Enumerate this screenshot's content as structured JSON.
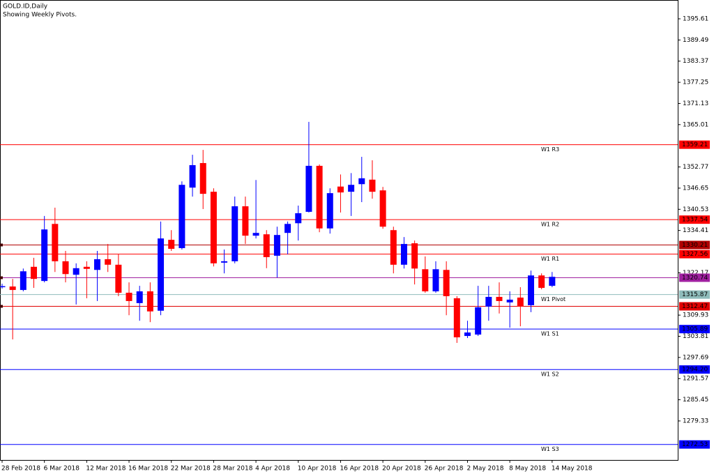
{
  "chart_data": {
    "type": "candlestick",
    "title": "GOLD.ID,Daily",
    "subtitle": "Showing Weekly Pivots.",
    "categories": [
      "28 Feb 2018",
      null,
      null,
      null,
      "6 Mar 2018",
      null,
      null,
      null,
      "12 Mar 2018",
      null,
      null,
      null,
      "16 Mar 2018",
      null,
      null,
      null,
      "22 Mar 2018",
      null,
      null,
      null,
      "28 Mar 2018",
      null,
      null,
      null,
      "4 Apr 2018",
      null,
      null,
      null,
      "10 Apr 2018",
      null,
      null,
      null,
      "16 Apr 2018",
      null,
      null,
      null,
      "20 Apr 2018",
      null,
      null,
      null,
      "26 Apr 2018",
      null,
      null,
      null,
      "2 May 2018",
      null,
      null,
      null,
      "8 May 2018",
      null,
      null,
      null,
      "14 May 2018"
    ],
    "open": [
      1318.2,
      1318.2,
      1317.2,
      1323.9,
      1319.8,
      1336.3,
      1325.5,
      1321.6,
      1323.9,
      1323.0,
      1326.1,
      1324.5,
      1316.4,
      1313.4,
      1316.8,
      1311.2,
      1331.7,
      1329.3,
      1346.8,
      1353.9,
      1345.6,
      1325.1,
      1325.5,
      1341.4,
      1332.9,
      1333.3,
      1327.1,
      1333.7,
      1336.5,
      1339.8,
      1353.1,
      1335.0,
      1347.1,
      1345.6,
      1347.8,
      1349.1,
      1346.0,
      1334.5,
      1324.5,
      1330.7,
      1323.2,
      1316.8,
      1323.0,
      1314.8,
      1303.9,
      1304.3,
      1312.4,
      1315.2,
      1313.6,
      1315.0,
      1312.8,
      1321.4,
      1318.4
    ],
    "high": [
      1319.0,
      1320.4,
      1323.4,
      1326.5,
      1338.6,
      1341.0,
      1328.5,
      1324.9,
      1325.5,
      1328.5,
      1330.5,
      1327.5,
      1319.4,
      1318.4,
      1319.4,
      1337.0,
      1334.5,
      1348.6,
      1356.3,
      1357.7,
      1346.6,
      1328.9,
      1344.2,
      1344.2,
      1349.0,
      1334.5,
      1335.5,
      1337.0,
      1341.6,
      1365.8,
      1353.5,
      1346.6,
      1350.6,
      1351.0,
      1355.7,
      1354.7,
      1347.0,
      1335.5,
      1332.5,
      1331.5,
      1326.9,
      1325.5,
      1325.5,
      1315.4,
      1308.3,
      1318.4,
      1318.4,
      1319.4,
      1316.8,
      1318.0,
      1322.8,
      1322.0,
      1322.4
    ],
    "low": [
      1317.6,
      1302.9,
      1316.8,
      1317.8,
      1319.4,
      1322.4,
      1319.4,
      1313.0,
      1314.8,
      1314.0,
      1322.4,
      1315.4,
      1309.9,
      1308.3,
      1307.9,
      1309.9,
      1328.5,
      1328.9,
      1344.2,
      1340.6,
      1324.0,
      1322.0,
      1324.9,
      1330.5,
      1332.1,
      1323.5,
      1320.8,
      1327.5,
      1331.5,
      1339.6,
      1333.9,
      1333.5,
      1339.6,
      1338.6,
      1342.6,
      1343.6,
      1334.9,
      1322.0,
      1323.4,
      1318.8,
      1316.4,
      1316.4,
      1309.9,
      1301.9,
      1303.3,
      1303.9,
      1308.3,
      1310.4,
      1306.3,
      1306.7,
      1310.8,
      1317.4,
      1318.0
    ],
    "close": [
      1318.3,
      1317.2,
      1322.6,
      1320.4,
      1334.7,
      1325.5,
      1321.8,
      1323.5,
      1323.3,
      1326.1,
      1324.5,
      1316.4,
      1314.0,
      1316.8,
      1311.0,
      1332.1,
      1329.1,
      1347.6,
      1353.3,
      1345.0,
      1324.9,
      1325.5,
      1341.4,
      1332.9,
      1333.7,
      1326.7,
      1333.1,
      1336.3,
      1339.4,
      1353.1,
      1335.0,
      1345.2,
      1345.4,
      1347.6,
      1349.5,
      1345.6,
      1335.5,
      1324.5,
      1330.5,
      1323.4,
      1316.8,
      1323.2,
      1315.4,
      1303.5,
      1304.9,
      1312.2,
      1315.2,
      1314.0,
      1314.4,
      1312.4,
      1321.4,
      1317.8,
      1321.0
    ],
    "up_color": "#0000ff",
    "down_color": "#ff0000",
    "ylim": [
      1268.04,
      1401.05
    ],
    "yticks": [
      1395.61,
      1389.49,
      1383.37,
      1377.25,
      1371.13,
      1365.01,
      1352.77,
      1346.65,
      1340.53,
      1334.41,
      1322.17,
      1309.93,
      1303.81,
      1297.69,
      1291.57,
      1285.45,
      1279.33
    ],
    "levels": {
      "names": [
        "W1 R3",
        "W1 R2",
        "W1 R1",
        "W1 Pivot",
        "W1 S1",
        "W1 S2",
        "W1 S3"
      ],
      "values": [
        1359.21,
        1337.54,
        1327.56,
        1315.87,
        1305.89,
        1294.2,
        1272.53
      ],
      "value_labels": [
        "1359.21",
        "1337.54",
        "1327.56",
        "1315.87",
        "1305.89",
        "1294.20",
        "1272.53"
      ],
      "colors": [
        "#ff0000",
        "#ff0000",
        "#ff0000",
        "#8fbcbb",
        "#0000ff",
        "#0000ff",
        "#0000ff"
      ]
    },
    "price_lines": {
      "values": [
        1330.21,
        1320.74,
        1312.47
      ],
      "value_labels": [
        "1330.21",
        "1320.74",
        "1312.47"
      ],
      "colors": [
        "#b00000",
        "#a020a0",
        "#e00000"
      ]
    }
  }
}
